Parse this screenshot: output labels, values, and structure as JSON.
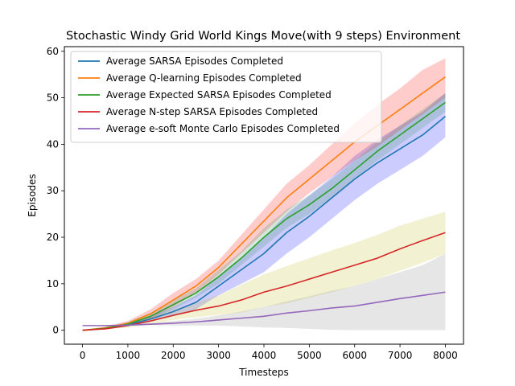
{
  "chart_data": {
    "type": "line",
    "title": "Stochastic Windy Grid World Kings Move(with 9 steps) Environment",
    "xlabel": "Timesteps",
    "ylabel": "Episodes",
    "xlim": [
      -400,
      8400
    ],
    "ylim": [
      -3.0,
      61.0
    ],
    "xticks": [
      0,
      1000,
      2000,
      3000,
      4000,
      5000,
      6000,
      7000,
      8000
    ],
    "yticks": [
      0,
      10,
      20,
      30,
      40,
      50,
      60
    ],
    "xtick_labels": [
      "0",
      "1000",
      "2000",
      "3000",
      "4000",
      "5000",
      "6000",
      "7000",
      "8000"
    ],
    "ytick_labels": [
      "0",
      "10",
      "20",
      "30",
      "40",
      "50",
      "60"
    ],
    "grid": false,
    "legend_position": "top-left",
    "series": [
      {
        "name": "Average SARSA Episodes Completed",
        "color": "#1f77b4",
        "band_color": "#0000ff",
        "x": [
          0,
          500,
          1000,
          1500,
          2000,
          2500,
          3000,
          3500,
          4000,
          4500,
          5000,
          5500,
          6000,
          6500,
          7000,
          7500,
          8000
        ],
        "y": [
          0,
          0.4,
          1.2,
          2.4,
          4.0,
          6.0,
          9.5,
          13.0,
          16.5,
          21.0,
          24.5,
          28.5,
          32.5,
          36.0,
          39.0,
          42.0,
          46.0
        ],
        "upper": [
          0,
          0.6,
          1.6,
          3.0,
          5.0,
          7.5,
          11.5,
          15.5,
          20.0,
          25.0,
          29.0,
          33.0,
          37.5,
          41.0,
          44.0,
          47.0,
          51.0
        ],
        "lower": [
          0,
          0.2,
          0.8,
          1.8,
          3.0,
          4.5,
          7.5,
          10.0,
          12.5,
          16.5,
          20.0,
          24.0,
          28.0,
          31.5,
          34.5,
          37.5,
          41.5
        ]
      },
      {
        "name": "Average Q-learning Episodes Completed",
        "color": "#ff7f0e",
        "band_color": "#ff0000",
        "x": [
          0,
          500,
          1000,
          1500,
          2000,
          2500,
          3000,
          3500,
          4000,
          4500,
          5000,
          5500,
          6000,
          6500,
          7000,
          7500,
          8000
        ],
        "y": [
          0,
          0.5,
          1.5,
          3.5,
          6.5,
          9.5,
          13.5,
          18.5,
          23.5,
          28.5,
          32.5,
          36.5,
          40.5,
          44.0,
          47.5,
          51.0,
          54.5
        ],
        "upper": [
          0,
          0.8,
          2.0,
          4.5,
          8.0,
          11.0,
          15.0,
          20.5,
          26.0,
          31.5,
          35.5,
          40.0,
          44.5,
          48.5,
          52.0,
          56.0,
          58.5
        ],
        "lower": [
          0,
          0.3,
          1.0,
          2.5,
          5.0,
          8.0,
          12.0,
          16.5,
          21.0,
          25.5,
          29.5,
          33.0,
          36.5,
          39.5,
          43.0,
          46.5,
          50.0
        ]
      },
      {
        "name": "Average Expected SARSA Episodes Completed",
        "color": "#2ca02c",
        "band_color": "#2e8b57",
        "x": [
          0,
          500,
          1000,
          1500,
          2000,
          2500,
          3000,
          3500,
          4000,
          4500,
          5000,
          5500,
          6000,
          6500,
          7000,
          7500,
          8000
        ],
        "y": [
          0,
          0.4,
          1.3,
          3.0,
          5.5,
          8.0,
          11.5,
          15.5,
          20.0,
          24.0,
          27.0,
          30.5,
          34.5,
          38.5,
          42.0,
          45.5,
          49.0
        ],
        "upper": [
          0,
          0.6,
          1.8,
          3.8,
          6.5,
          9.0,
          13.0,
          17.0,
          22.0,
          26.0,
          29.0,
          32.5,
          36.5,
          40.5,
          44.0,
          47.5,
          51.0
        ],
        "lower": [
          0,
          0.2,
          0.9,
          2.3,
          4.5,
          7.0,
          10.0,
          14.0,
          18.0,
          22.0,
          25.0,
          28.5,
          32.5,
          36.5,
          40.0,
          43.5,
          47.0
        ]
      },
      {
        "name": "Average N-step SARSA Episodes Completed",
        "color": "#d62728",
        "band_color": "#bcbd22",
        "x": [
          0,
          500,
          1000,
          1500,
          2000,
          2500,
          3000,
          3500,
          4000,
          4500,
          5000,
          5500,
          6000,
          6500,
          7000,
          7500,
          8000
        ],
        "y": [
          0,
          0.3,
          1.0,
          2.0,
          3.2,
          4.3,
          5.2,
          6.5,
          8.2,
          9.5,
          11.0,
          12.5,
          14.0,
          15.5,
          17.5,
          19.3,
          21.0
        ],
        "upper": [
          0,
          0.5,
          1.5,
          2.8,
          4.5,
          6.0,
          7.5,
          9.8,
          12.0,
          13.8,
          15.5,
          17.2,
          18.8,
          20.5,
          22.5,
          24.0,
          25.5
        ],
        "lower": [
          0,
          0.1,
          0.6,
          1.3,
          2.2,
          2.8,
          3.3,
          3.8,
          5.0,
          5.8,
          7.0,
          8.2,
          9.5,
          11.0,
          12.8,
          14.5,
          16.5
        ]
      },
      {
        "name": "Average e-soft Monte Carlo Episodes Completed",
        "color": "#9467bd",
        "band_color": "#808080",
        "x": [
          0,
          500,
          1000,
          1500,
          2000,
          2500,
          3000,
          3500,
          4000,
          4500,
          5000,
          5500,
          6000,
          6500,
          7000,
          7500,
          8000
        ],
        "y": [
          1,
          1,
          1.1,
          1.3,
          1.5,
          1.8,
          2.2,
          2.6,
          3.0,
          3.7,
          4.2,
          4.8,
          5.2,
          6.0,
          6.8,
          7.5,
          8.2
        ],
        "upper": [
          1,
          1,
          1.2,
          1.5,
          2.0,
          2.5,
          3.2,
          4.0,
          5.0,
          6.2,
          7.3,
          8.5,
          9.5,
          11.0,
          12.5,
          14.0,
          16.5
        ],
        "lower": [
          1,
          1,
          1.0,
          1.1,
          1.0,
          1.0,
          1.0,
          0.8,
          0.6,
          0.5,
          0.3,
          0.1,
          0.0,
          0.0,
          0.0,
          0.0,
          0.0
        ]
      }
    ]
  }
}
